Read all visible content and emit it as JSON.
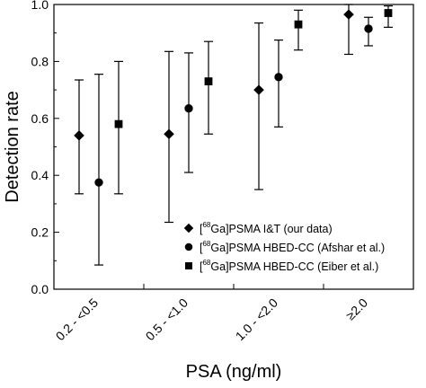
{
  "chart_data": {
    "type": "scatter",
    "categories": [
      "0.2 - <0.5",
      "0.5 - <1.0",
      "1.0 - <2.0",
      "≥2.0"
    ],
    "xlabel": "PSA (ng/ml)",
    "ylabel": "Detection rate",
    "ylim": [
      0.0,
      1.0
    ],
    "yticks": [
      "0.0",
      "0.2",
      "0.4",
      "0.6",
      "0.8",
      "1.0"
    ],
    "legend_position": "bottom-right",
    "grid": false,
    "series": [
      {
        "name": "[68Ga]PSMA I&T (our data)",
        "name_parts": {
          "pre": "[",
          "sup": "68",
          "post": "Ga]PSMA I&T (our data)"
        },
        "marker": "diamond",
        "values": [
          0.54,
          0.545,
          0.7,
          0.965
        ],
        "lower": [
          0.335,
          0.235,
          0.35,
          0.825
        ],
        "upper": [
          0.735,
          0.835,
          0.935,
          1.0
        ]
      },
      {
        "name": "[68Ga]PSMA HBED-CC (Afshar et al.)",
        "name_parts": {
          "pre": "[",
          "sup": "68",
          "post": "Ga]PSMA HBED-CC (Afshar et al.)"
        },
        "marker": "circle",
        "values": [
          0.375,
          0.635,
          0.745,
          0.915
        ],
        "lower": [
          0.085,
          0.41,
          0.57,
          0.855
        ],
        "upper": [
          0.755,
          0.83,
          0.875,
          0.955
        ]
      },
      {
        "name": "[68Ga]PSMA HBED-CC (Eiber et al.)",
        "name_parts": {
          "pre": "[",
          "sup": "68",
          "post": "Ga]PSMA HBED-CC (Eiber et al.)"
        },
        "marker": "square",
        "values": [
          0.58,
          0.73,
          0.93,
          0.97
        ],
        "lower": [
          0.335,
          0.545,
          0.84,
          0.92
        ],
        "upper": [
          0.8,
          0.87,
          0.98,
          0.995
        ]
      }
    ]
  }
}
